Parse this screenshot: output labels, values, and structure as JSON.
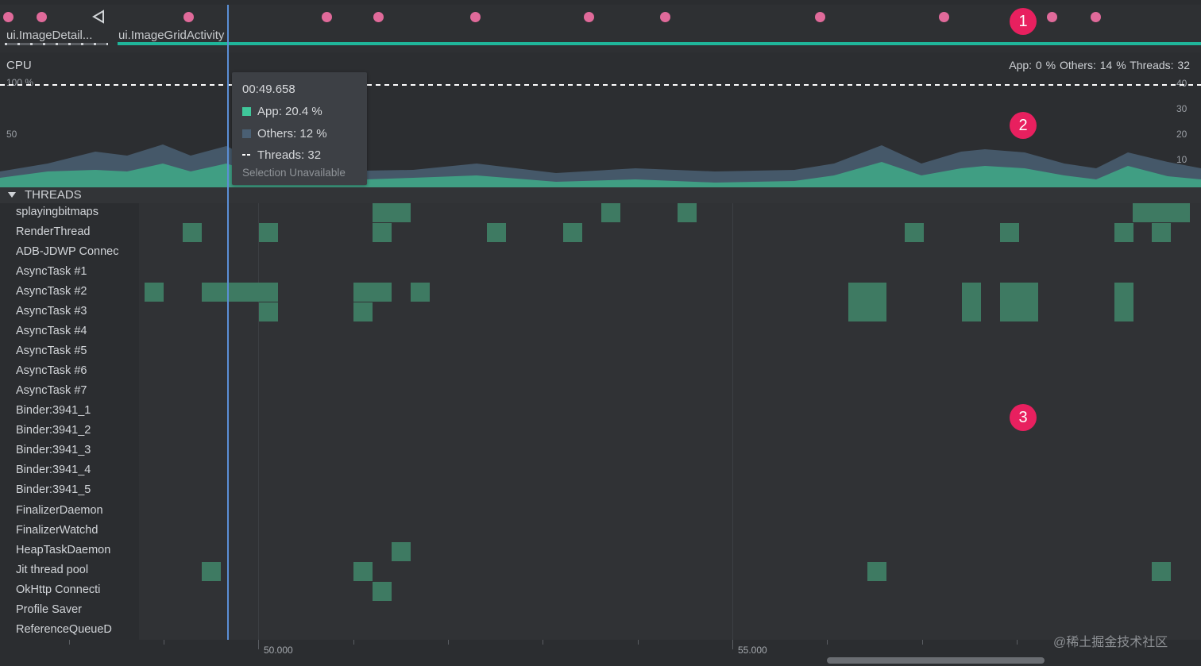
{
  "colors": {
    "accent_teal": "#1fb59a",
    "app_cpu": "#3fc79a",
    "others_cpu": "#4a5f73",
    "event_dot": "#e06a9a",
    "marker": "#e8205f",
    "thread_running": "#3e7a62",
    "playhead": "#5b8fd6"
  },
  "events": {
    "activities": [
      "ui.ImageDetail...",
      "ui.ImageGridActivity"
    ],
    "back_icon": "back-triangle-icon"
  },
  "cpu": {
    "title": "CPU",
    "stats": "App: 0 %   Others: 14 %   Threads: 32",
    "left_axis": [
      "100 %",
      "50"
    ],
    "right_axis": [
      "40",
      "30",
      "20",
      "10"
    ]
  },
  "tooltip": {
    "time": "00:49.658",
    "app": "App: 20.4 %",
    "others": "Others: 12 %",
    "threads": "Threads: 32",
    "selection": "Selection Unavailable"
  },
  "threads": {
    "header": "THREADS",
    "names": [
      "splayingbitmaps",
      "RenderThread",
      "ADB-JDWP Connec",
      "AsyncTask #1",
      "AsyncTask #2",
      "AsyncTask #3",
      "AsyncTask #4",
      "AsyncTask #5",
      "AsyncTask #6",
      "AsyncTask #7",
      "Binder:3941_1",
      "Binder:3941_2",
      "Binder:3941_3",
      "Binder:3941_4",
      "Binder:3941_5",
      "FinalizerDaemon",
      "FinalizerWatchd",
      "HeapTaskDaemon",
      "Jit thread pool",
      "OkHttp Connecti",
      "Profile Saver",
      "ReferenceQueueD"
    ]
  },
  "timeline": {
    "ticks": [
      "50.000",
      "55.000"
    ]
  },
  "markers": [
    "1",
    "2",
    "3"
  ],
  "watermark": "@稀土掘金技术社区"
}
